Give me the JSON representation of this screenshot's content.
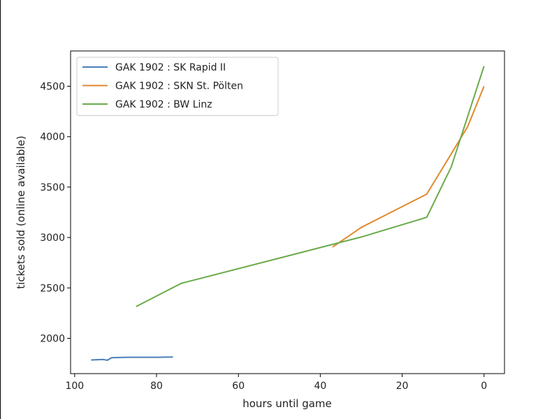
{
  "chart_data": {
    "type": "line",
    "xlabel": "hours until game",
    "ylabel": "tickets sold (online available)",
    "xlim": [
      101,
      -5
    ],
    "ylim": [
      1650,
      4850
    ],
    "x_inverted": true,
    "xticks": [
      100,
      80,
      60,
      40,
      20,
      0
    ],
    "yticks": [
      2000,
      2500,
      3000,
      3500,
      4000,
      4500
    ],
    "grid": false,
    "legend_position": "top-left",
    "series": [
      {
        "name": "GAK 1902 : SK Rapid II",
        "color": "#4a7ebb",
        "x": [
          96,
          93,
          92,
          91,
          89,
          87,
          85,
          80,
          76
        ],
        "y": [
          1785,
          1790,
          1782,
          1808,
          1810,
          1812,
          1812,
          1812,
          1815
        ]
      },
      {
        "name": "GAK 1902 : SKN St. Pölten",
        "color": "#e08a2e",
        "x": [
          37,
          30,
          14,
          8,
          4,
          0
        ],
        "y": [
          2905,
          3100,
          3430,
          3830,
          4100,
          4500
        ]
      },
      {
        "name": "GAK 1902 : BW Linz",
        "color": "#6aaa4a",
        "x": [
          85,
          74,
          30,
          14,
          8,
          0
        ],
        "y": [
          2315,
          2545,
          3005,
          3200,
          3700,
          4700
        ]
      }
    ]
  }
}
